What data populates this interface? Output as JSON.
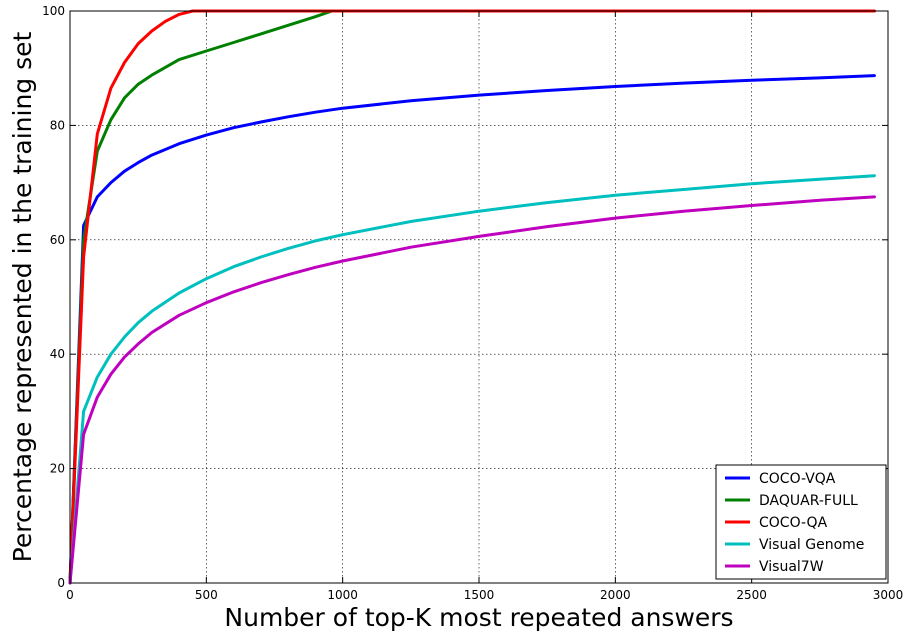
{
  "chart_data": {
    "type": "line",
    "title": "",
    "xlabel": "Number of top-K most repeated answers",
    "ylabel": "Percentage represented in the training set",
    "xlim": [
      0,
      3000
    ],
    "ylim": [
      0,
      100
    ],
    "xticks": [
      0,
      500,
      1000,
      1500,
      2000,
      2500,
      3000
    ],
    "yticks": [
      0,
      20,
      40,
      60,
      80,
      100
    ],
    "grid": true,
    "legend_position": "lower-right",
    "series": [
      {
        "name": "COCO-VQA",
        "color": "#0000ff",
        "x": [
          0,
          50,
          100,
          150,
          200,
          250,
          300,
          400,
          500,
          600,
          700,
          800,
          900,
          1000,
          1250,
          1500,
          1750,
          2000,
          2250,
          2500,
          2750,
          2950
        ],
        "y": [
          0,
          62.5,
          67.5,
          70.0,
          72.0,
          73.5,
          74.8,
          76.8,
          78.3,
          79.6,
          80.6,
          81.5,
          82.3,
          83.0,
          84.3,
          85.3,
          86.1,
          86.8,
          87.4,
          87.9,
          88.3,
          88.7
        ]
      },
      {
        "name": "DAQUAR-FULL",
        "color": "#008000",
        "x": [
          0,
          50,
          100,
          150,
          200,
          250,
          300,
          400,
          500,
          600,
          700,
          800,
          900,
          960,
          1000,
          1500,
          2000,
          2500,
          2950
        ],
        "y": [
          0,
          60.0,
          75.5,
          81.0,
          84.8,
          87.2,
          88.8,
          91.5,
          93.0,
          94.5,
          96.0,
          97.5,
          99.0,
          100,
          100,
          100,
          100,
          100,
          100
        ]
      },
      {
        "name": "COCO-QA",
        "color": "#ff0000",
        "x": [
          0,
          50,
          100,
          150,
          200,
          250,
          300,
          350,
          400,
          450,
          500,
          1000,
          1500,
          2000,
          2500,
          2950
        ],
        "y": [
          0,
          57.0,
          78.5,
          86.5,
          91.0,
          94.3,
          96.5,
          98.2,
          99.4,
          100,
          100,
          100,
          100,
          100,
          100,
          100
        ]
      },
      {
        "name": "Visual Genome",
        "color": "#00bfbf",
        "x": [
          0,
          50,
          100,
          150,
          200,
          250,
          300,
          400,
          500,
          600,
          700,
          800,
          900,
          1000,
          1250,
          1500,
          1750,
          2000,
          2250,
          2500,
          2750,
          2950
        ],
        "y": [
          0,
          30.0,
          36.0,
          40.0,
          43.0,
          45.5,
          47.5,
          50.7,
          53.2,
          55.3,
          57.0,
          58.5,
          59.8,
          60.9,
          63.2,
          65.0,
          66.5,
          67.8,
          68.8,
          69.8,
          70.6,
          71.2
        ]
      },
      {
        "name": "Visual7W",
        "color": "#bf00bf",
        "x": [
          0,
          50,
          100,
          150,
          200,
          250,
          300,
          400,
          500,
          600,
          700,
          800,
          900,
          1000,
          1250,
          1500,
          1750,
          2000,
          2250,
          2500,
          2750,
          2950
        ],
        "y": [
          0,
          26.0,
          32.5,
          36.5,
          39.5,
          41.8,
          43.8,
          46.8,
          49.0,
          50.9,
          52.5,
          53.9,
          55.2,
          56.3,
          58.7,
          60.6,
          62.3,
          63.8,
          65.0,
          66.0,
          66.9,
          67.5
        ]
      }
    ]
  }
}
